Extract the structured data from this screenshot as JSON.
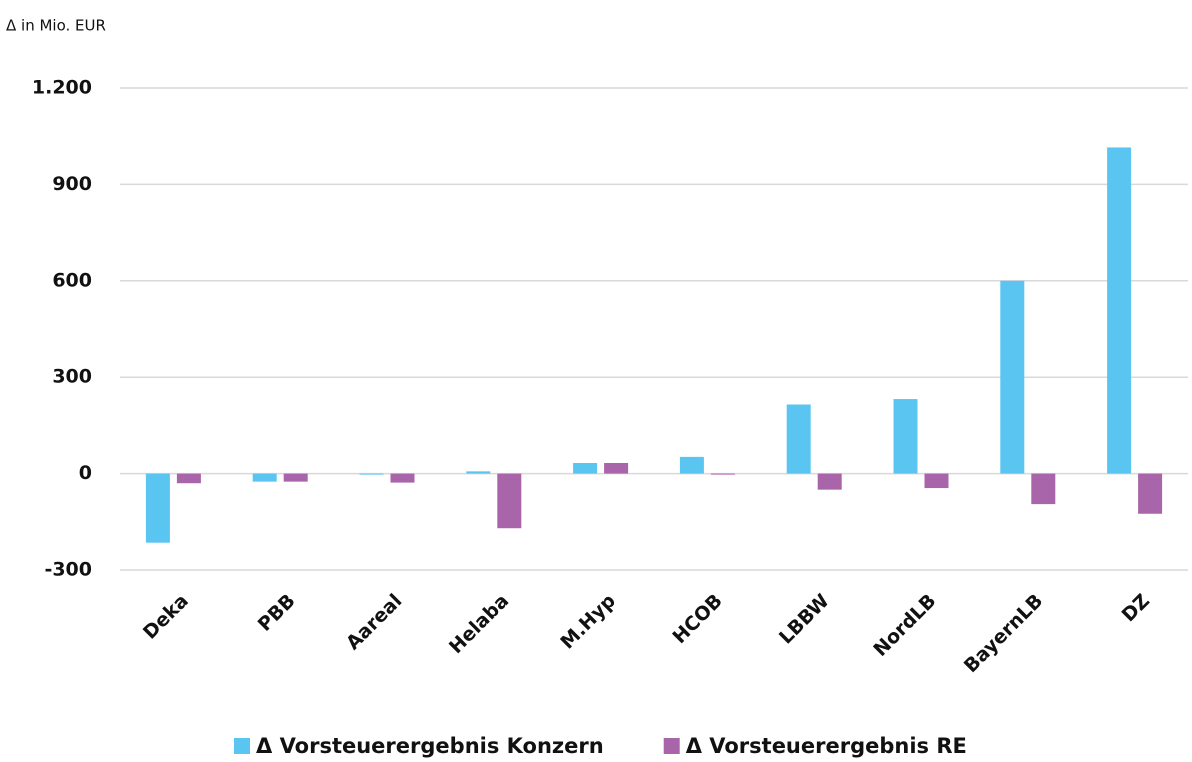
{
  "chart_data": {
    "type": "bar",
    "ylabel": "Δ in Mio. EUR",
    "categories": [
      "Deka",
      "PBB",
      "Aareal",
      "Helaba",
      "M.Hyp",
      "HCOB",
      "LBBW",
      "NordLB",
      "BayernLB",
      "DZ"
    ],
    "series": [
      {
        "name": "Δ Vorsteuerergebnis Konzern",
        "color": "#5bc5f2",
        "values": [
          -215,
          -25,
          -3,
          7,
          33,
          52,
          215,
          232,
          600,
          1015
        ]
      },
      {
        "name": "Δ Vorsteuerergebnis RE",
        "color": "#a965a9",
        "values": [
          -30,
          -25,
          -28,
          -170,
          33,
          -3,
          -50,
          -45,
          -95,
          -125
        ]
      }
    ],
    "ylim": [
      -300,
      1200
    ],
    "yticks": [
      -300,
      0,
      300,
      600,
      900,
      {
        "value": 1200,
        "label": "1.200"
      }
    ],
    "grid": true
  }
}
